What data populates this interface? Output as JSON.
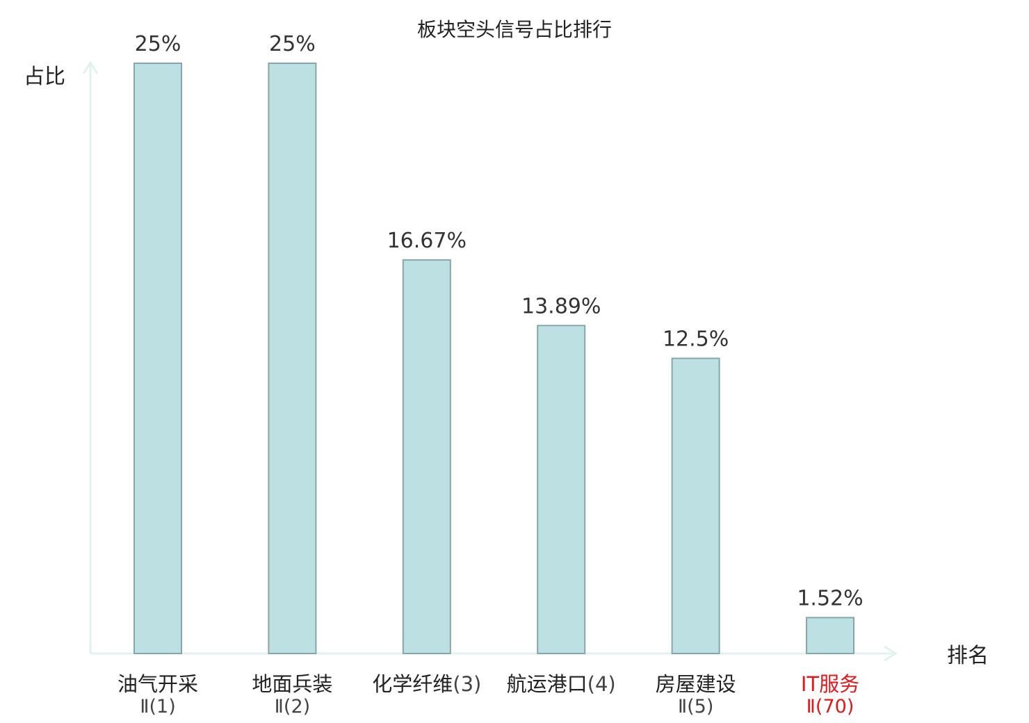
{
  "chart_data": {
    "type": "bar",
    "title": "板块空头信号占比排行",
    "ylabel": "占比",
    "xlabel": "排名",
    "ylim": [
      0,
      25
    ],
    "grid": false,
    "legend": "none",
    "categories": [
      {
        "name": "油气开采",
        "rank": "Ⅱ(1)",
        "highlight": false
      },
      {
        "name": "地面兵装",
        "rank": "Ⅱ(2)",
        "highlight": false
      },
      {
        "name": "化学纤维",
        "rank": "(3)",
        "highlight": false
      },
      {
        "name": "航运港口",
        "rank": "(4)",
        "highlight": false
      },
      {
        "name": "房屋建设",
        "rank": "Ⅱ(5)",
        "highlight": false
      },
      {
        "name": "IT服务",
        "rank": "Ⅱ(70)",
        "highlight": true
      }
    ],
    "values": [
      25,
      25,
      16.67,
      13.89,
      12.5,
      1.52
    ],
    "value_labels": [
      "25%",
      "25%",
      "16.67%",
      "13.89%",
      "12.5%",
      "1.52%"
    ],
    "colors": {
      "bar_fill": "#bde0e2",
      "bar_stroke": "#86a7aa",
      "axis": "#e0f3f1",
      "text": "#222222",
      "rank_text": "#444444",
      "highlight": "#e0191b"
    }
  }
}
